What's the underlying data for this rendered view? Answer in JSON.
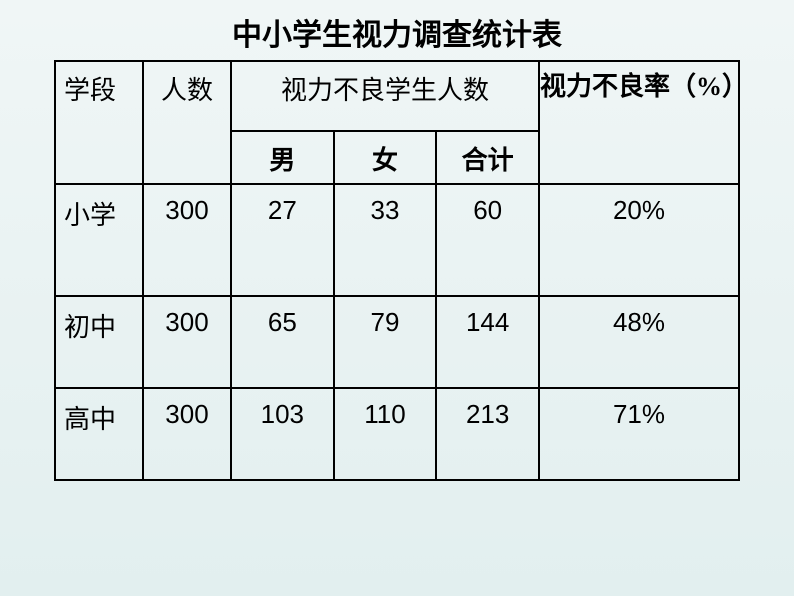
{
  "title": "中小学生视力调查统计表",
  "headers": {
    "stage": "学段",
    "count": "人数",
    "poor_vision_count": "视力不良学生人数",
    "poor_vision_rate": "视力不良率（%）",
    "male": "男",
    "female": "女",
    "total": "合计"
  },
  "rows": [
    {
      "stage": "小学",
      "count": "300",
      "male": "27",
      "female": "33",
      "total": "60",
      "rate": "20%"
    },
    {
      "stage": "初中",
      "count": "300",
      "male": "65",
      "female": "79",
      "total": "144",
      "rate": "48%"
    },
    {
      "stage": "高中",
      "count": "300",
      "male": "103",
      "female": "110",
      "total": "213",
      "rate": "71%"
    }
  ],
  "styling": {
    "background_gradient_top": "#f0f6f6",
    "background_gradient_bottom": "#e2efef",
    "border_color": "#000000",
    "border_width": 2,
    "title_fontsize": 30,
    "cell_fontsize": 26,
    "text_color": "#000000",
    "column_widths": {
      "stage": 88,
      "count": 88,
      "male": 88,
      "female": 88,
      "total": 88,
      "rate": 200
    }
  }
}
